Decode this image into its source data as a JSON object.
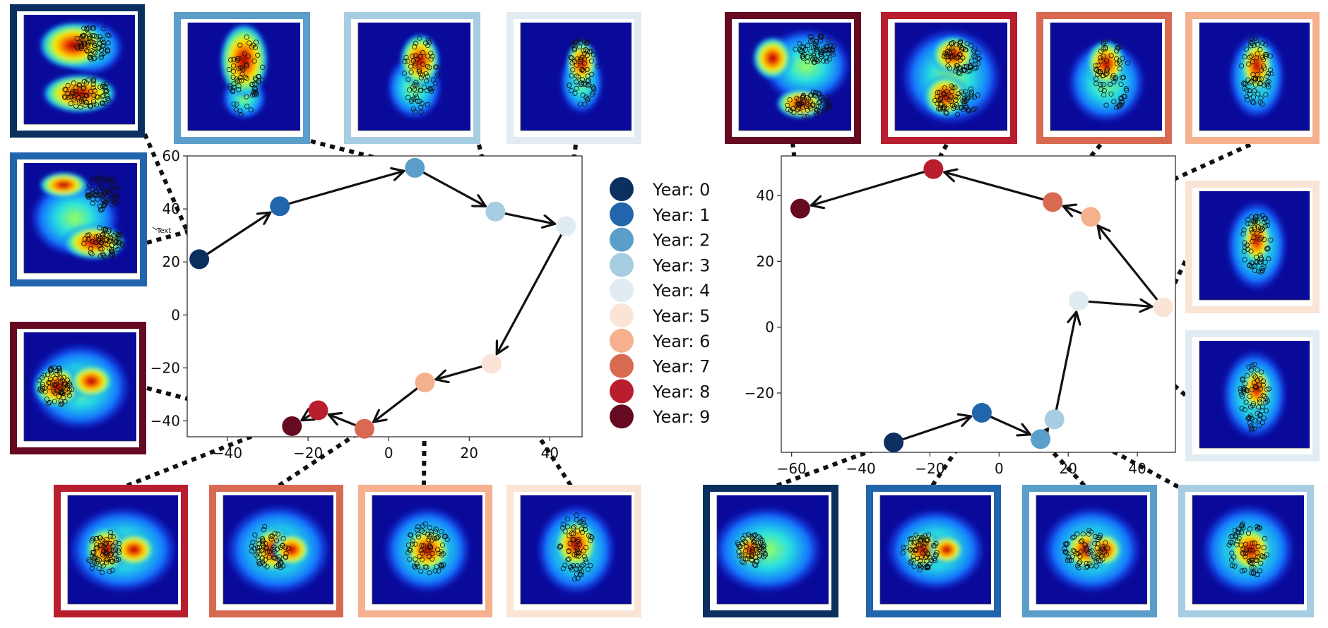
{
  "legend": {
    "entries": [
      "Year: 0",
      "Year: 1",
      "Year: 2",
      "Year: 3",
      "Year: 4",
      "Year: 5",
      "Year: 6",
      "Year: 7",
      "Year: 8",
      "Year: 9"
    ],
    "colors": [
      "#0b3060",
      "#2166ac",
      "#5a9ec9",
      "#a7cde3",
      "#e1ebf2",
      "#fae4d6",
      "#f5b08d",
      "#d96a52",
      "#b81e2e",
      "#650a21"
    ]
  },
  "annotation_text": "Text",
  "chart_data": [
    {
      "type": "scatter",
      "title": "",
      "xlabel": "",
      "ylabel": "",
      "xlim": [
        -50,
        48
      ],
      "ylim": [
        -46,
        60
      ],
      "xticks": [
        -40,
        -20,
        0,
        20,
        40
      ],
      "yticks": [
        -40,
        -20,
        0,
        20,
        40,
        60
      ],
      "xticklabels": [
        "−40",
        "−20",
        "0",
        "20",
        "40"
      ],
      "yticklabels": [
        "−40",
        "−20",
        "0",
        "20",
        "40",
        "60"
      ],
      "points": [
        {
          "year": 0,
          "x": -47,
          "y": 21
        },
        {
          "year": 1,
          "x": -27,
          "y": 41
        },
        {
          "year": 2,
          "x": 6.5,
          "y": 55.5
        },
        {
          "year": 3,
          "x": 26.5,
          "y": 39
        },
        {
          "year": 4,
          "x": 44,
          "y": 33.5
        },
        {
          "year": 5,
          "x": 25.5,
          "y": -18.5
        },
        {
          "year": 6,
          "x": 9,
          "y": -25.5
        },
        {
          "year": 7,
          "x": -6,
          "y": -43
        },
        {
          "year": 8,
          "x": -17.5,
          "y": -36
        },
        {
          "year": 9,
          "x": -24,
          "y": -42
        }
      ],
      "heatmap_colors": [
        "#0b3060",
        "#2166ac",
        "#5a9ec9",
        "#a7cde3",
        "#e1ebf2",
        "#fae4d6",
        "#f5b08d",
        "#d96a52",
        "#b81e2e",
        "#650a21"
      ]
    },
    {
      "type": "scatter",
      "title": "",
      "xlabel": "",
      "ylabel": "",
      "xlim": [
        -63,
        51
      ],
      "ylim": [
        -38,
        52
      ],
      "xticks": [
        -60,
        -40,
        -20,
        0,
        20,
        40
      ],
      "yticks": [
        -20,
        0,
        20,
        40
      ],
      "xticklabels": [
        "−60",
        "−40",
        "−20",
        "0",
        "20",
        "40"
      ],
      "yticklabels": [
        "−20",
        "0",
        "20",
        "40"
      ],
      "points": [
        {
          "year": 0,
          "x": -30.5,
          "y": -35
        },
        {
          "year": 1,
          "x": -5,
          "y": -26
        },
        {
          "year": 2,
          "x": 12,
          "y": -34
        },
        {
          "year": 3,
          "x": 16,
          "y": -28
        },
        {
          "year": 4,
          "x": 23,
          "y": 8
        },
        {
          "year": 5,
          "x": 47.5,
          "y": 6
        },
        {
          "year": 6,
          "x": 26.5,
          "y": 33.5
        },
        {
          "year": 7,
          "x": 15.5,
          "y": 38
        },
        {
          "year": 8,
          "x": -19,
          "y": 48
        },
        {
          "year": 9,
          "x": -57.5,
          "y": 36
        }
      ],
      "heatmap_colors": [
        "#0b3060",
        "#2166ac",
        "#5a9ec9",
        "#a7cde3",
        "#e1ebf2",
        "#fae4d6",
        "#f5b08d",
        "#d96a52",
        "#b81e2e",
        "#650a21"
      ]
    }
  ]
}
